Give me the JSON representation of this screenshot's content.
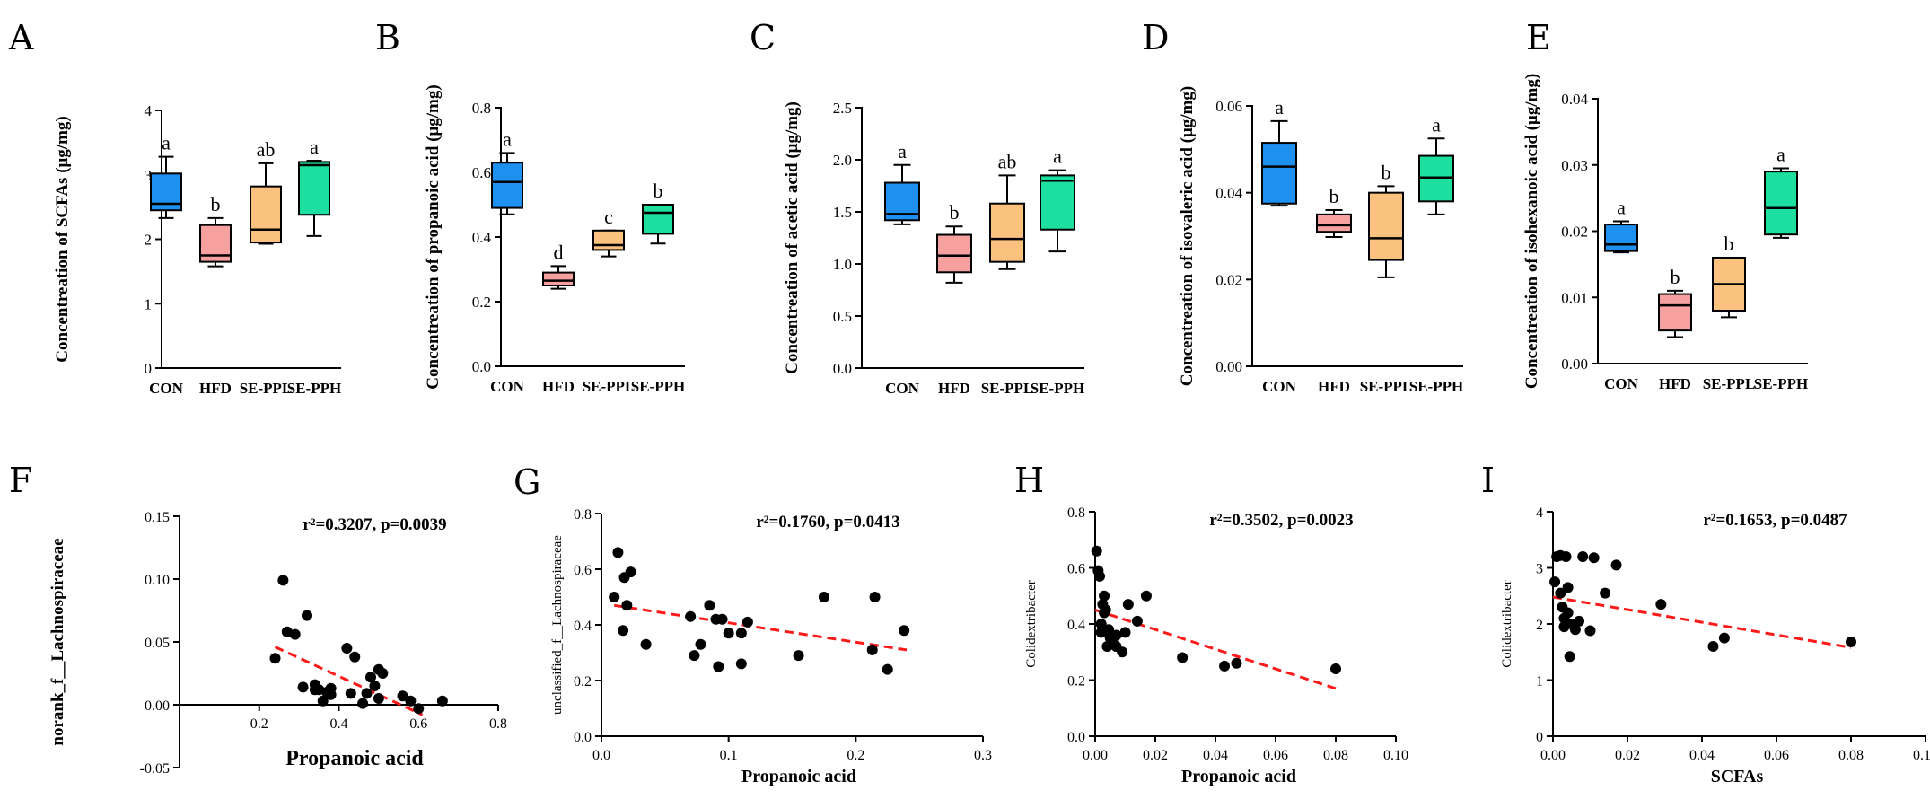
{
  "colors": {
    "CON": "#1e90f0",
    "HFD": "#f6a0a0",
    "SE-PPL": "#fbc27f",
    "SE-PPH": "#1de0a0",
    "trend": "#ff1a1a",
    "point": "#000000"
  },
  "chart_data": [
    {
      "panel": "A",
      "type": "box",
      "ylabel": "Concentreation of SCFAs (μg/mg)",
      "ylim": [
        0,
        4
      ],
      "yticks": [
        0,
        1,
        2,
        3,
        4
      ],
      "ytick_labels": [
        "0",
        "1",
        "2",
        "3",
        "4"
      ],
      "categories": [
        "CON",
        "HFD",
        "SE-PPL",
        "SE-PPH"
      ],
      "boxes": [
        {
          "group": "CON",
          "min": 2.33,
          "q1": 2.45,
          "median": 2.55,
          "q3": 3.02,
          "max": 3.28,
          "sig": "a"
        },
        {
          "group": "HFD",
          "min": 1.58,
          "q1": 1.65,
          "median": 1.75,
          "q3": 2.22,
          "max": 2.33,
          "sig": "b"
        },
        {
          "group": "SE-PPL",
          "min": 1.93,
          "q1": 1.95,
          "median": 2.15,
          "q3": 2.82,
          "max": 3.18,
          "sig": "ab"
        },
        {
          "group": "SE-PPH",
          "min": 2.05,
          "q1": 2.38,
          "median": 3.15,
          "q3": 3.2,
          "max": 3.22,
          "sig": "a"
        }
      ]
    },
    {
      "panel": "B",
      "type": "box",
      "ylabel": "Concentreation of propanoic acid (μg/mg)",
      "ylim": [
        0,
        0.8
      ],
      "yticks": [
        0,
        0.2,
        0.4,
        0.6,
        0.8
      ],
      "ytick_labels": [
        "0.0",
        "0.2",
        "0.4",
        "0.6",
        "0.8"
      ],
      "categories": [
        "CON",
        "HFD",
        "SE-PPL",
        "SE-PPH"
      ],
      "boxes": [
        {
          "group": "CON",
          "min": 0.47,
          "q1": 0.49,
          "median": 0.57,
          "q3": 0.63,
          "max": 0.66,
          "sig": "a"
        },
        {
          "group": "HFD",
          "min": 0.24,
          "q1": 0.25,
          "median": 0.265,
          "q3": 0.29,
          "max": 0.31,
          "sig": "d"
        },
        {
          "group": "SE-PPL",
          "min": 0.34,
          "q1": 0.36,
          "median": 0.375,
          "q3": 0.42,
          "max": 0.42,
          "sig": "c"
        },
        {
          "group": "SE-PPH",
          "min": 0.38,
          "q1": 0.41,
          "median": 0.475,
          "q3": 0.5,
          "max": 0.5,
          "sig": "b"
        }
      ]
    },
    {
      "panel": "C",
      "type": "box",
      "ylabel": "Concentreation of acetic acid (μg/mg)",
      "ylim": [
        0,
        2.5
      ],
      "yticks": [
        0,
        0.5,
        1,
        1.5,
        2,
        2.5
      ],
      "ytick_labels": [
        "0.0",
        "0.5",
        "1.0",
        "1.5",
        "2.0",
        "2.5"
      ],
      "categories": [
        "CON",
        "HFD",
        "SE-PPL",
        "SE-PPH"
      ],
      "boxes": [
        {
          "group": "CON",
          "min": 1.38,
          "q1": 1.42,
          "median": 1.48,
          "q3": 1.78,
          "max": 1.95,
          "sig": "a"
        },
        {
          "group": "HFD",
          "min": 0.82,
          "q1": 0.92,
          "median": 1.08,
          "q3": 1.28,
          "max": 1.36,
          "sig": "b"
        },
        {
          "group": "SE-PPL",
          "min": 0.95,
          "q1": 1.02,
          "median": 1.24,
          "q3": 1.58,
          "max": 1.85,
          "sig": "ab"
        },
        {
          "group": "SE-PPH",
          "min": 1.12,
          "q1": 1.33,
          "median": 1.8,
          "q3": 1.85,
          "max": 1.9,
          "sig": "a"
        }
      ]
    },
    {
      "panel": "D",
      "type": "box",
      "ylabel": "Concentreation of isovaleric acid (μg/mg)",
      "ylim": [
        0,
        0.06
      ],
      "yticks": [
        0,
        0.02,
        0.04,
        0.06
      ],
      "ytick_labels": [
        "0.00",
        "0.02",
        "0.04",
        "0.06"
      ],
      "categories": [
        "CON",
        "HFD",
        "SE-PPL",
        "SE-PPH"
      ],
      "boxes": [
        {
          "group": "CON",
          "min": 0.037,
          "q1": 0.0375,
          "median": 0.046,
          "q3": 0.0515,
          "max": 0.0565,
          "sig": "a"
        },
        {
          "group": "HFD",
          "min": 0.0298,
          "q1": 0.031,
          "median": 0.0325,
          "q3": 0.035,
          "max": 0.036,
          "sig": "b"
        },
        {
          "group": "SE-PPL",
          "min": 0.0205,
          "q1": 0.0245,
          "median": 0.0295,
          "q3": 0.04,
          "max": 0.0415,
          "sig": "b"
        },
        {
          "group": "SE-PPH",
          "min": 0.035,
          "q1": 0.038,
          "median": 0.0435,
          "q3": 0.0485,
          "max": 0.0525,
          "sig": "a"
        }
      ]
    },
    {
      "panel": "E",
      "type": "box",
      "ylabel": "Concentreation of isohexanoic acid (μg/mg)",
      "ylim": [
        0,
        0.04
      ],
      "yticks": [
        0,
        0.01,
        0.02,
        0.03,
        0.04
      ],
      "ytick_labels": [
        "0.00",
        "0.01",
        "0.02",
        "0.03",
        "0.04"
      ],
      "categories": [
        "CON",
        "HFD",
        "SE-PPL",
        "SE-PPH"
      ],
      "boxes": [
        {
          "group": "CON",
          "min": 0.0168,
          "q1": 0.017,
          "median": 0.018,
          "q3": 0.021,
          "max": 0.0215,
          "sig": "a"
        },
        {
          "group": "HFD",
          "min": 0.004,
          "q1": 0.005,
          "median": 0.0088,
          "q3": 0.0105,
          "max": 0.011,
          "sig": "b"
        },
        {
          "group": "SE-PPL",
          "min": 0.007,
          "q1": 0.008,
          "median": 0.012,
          "q3": 0.016,
          "max": 0.016,
          "sig": "b"
        },
        {
          "group": "SE-PPH",
          "min": 0.019,
          "q1": 0.0195,
          "median": 0.0235,
          "q3": 0.029,
          "max": 0.0295,
          "sig": "a"
        }
      ]
    },
    {
      "panel": "F",
      "type": "scatter",
      "xlabel": "Propanoic acid",
      "ylabel": "norank_f__Lachnospiraceae",
      "stat": "r²=0.3207, p=0.0039",
      "xlim": [
        0,
        0.8
      ],
      "ylim": [
        -0.05,
        0.15
      ],
      "xticks": [
        0.2,
        0.4,
        0.6,
        0.8
      ],
      "xtick_labels": [
        "0.2",
        "0.4",
        "0.6",
        "0.8"
      ],
      "yticks": [
        -0.05,
        0,
        0.05,
        0.1,
        0.15
      ],
      "ytick_labels": [
        "-0.05",
        "0.00",
        "0.05",
        "0.10",
        "0.15"
      ],
      "points": [
        [
          0.24,
          0.037
        ],
        [
          0.26,
          0.099
        ],
        [
          0.27,
          0.058
        ],
        [
          0.29,
          0.056
        ],
        [
          0.31,
          0.014
        ],
        [
          0.32,
          0.071
        ],
        [
          0.34,
          0.016
        ],
        [
          0.34,
          0.012
        ],
        [
          0.35,
          0.012
        ],
        [
          0.36,
          0.003
        ],
        [
          0.37,
          0.01
        ],
        [
          0.38,
          0.013
        ],
        [
          0.38,
          0.008
        ],
        [
          0.42,
          0.045
        ],
        [
          0.43,
          0.009
        ],
        [
          0.44,
          0.038
        ],
        [
          0.46,
          0.001
        ],
        [
          0.47,
          0.009
        ],
        [
          0.48,
          0.022
        ],
        [
          0.49,
          0.015
        ],
        [
          0.5,
          0.028
        ],
        [
          0.51,
          0.025
        ],
        [
          0.5,
          0.005
        ],
        [
          0.56,
          0.007
        ],
        [
          0.58,
          0.003
        ],
        [
          0.6,
          -0.003
        ],
        [
          0.66,
          0.003
        ]
      ],
      "trend": {
        "x0": 0.24,
        "y0": 0.046,
        "x1": 0.61,
        "y1": -0.008
      }
    },
    {
      "panel": "G",
      "type": "scatter",
      "xlabel": "Propanoic acid",
      "ylabel": "unclassified_f__Lachnospiraceae",
      "stat": "r²=0.1760, p=0.0413",
      "xlim": [
        0,
        0.3
      ],
      "ylim": [
        0,
        0.8
      ],
      "xticks": [
        0,
        0.1,
        0.2,
        0.3
      ],
      "xtick_labels": [
        "0.0",
        "0.1",
        "0.2",
        "0.3"
      ],
      "yticks": [
        0,
        0.2,
        0.4,
        0.6,
        0.8
      ],
      "ytick_labels": [
        "0.0",
        "0.2",
        "0.4",
        "0.6",
        "0.8"
      ],
      "points": [
        [
          0.01,
          0.5
        ],
        [
          0.013,
          0.66
        ],
        [
          0.017,
          0.38
        ],
        [
          0.018,
          0.57
        ],
        [
          0.02,
          0.47
        ],
        [
          0.023,
          0.59
        ],
        [
          0.035,
          0.33
        ],
        [
          0.07,
          0.43
        ],
        [
          0.073,
          0.29
        ],
        [
          0.078,
          0.33
        ],
        [
          0.085,
          0.47
        ],
        [
          0.09,
          0.42
        ],
        [
          0.092,
          0.25
        ],
        [
          0.095,
          0.42
        ],
        [
          0.1,
          0.37
        ],
        [
          0.11,
          0.37
        ],
        [
          0.11,
          0.26
        ],
        [
          0.115,
          0.41
        ],
        [
          0.155,
          0.29
        ],
        [
          0.175,
          0.5
        ],
        [
          0.213,
          0.31
        ],
        [
          0.215,
          0.5
        ],
        [
          0.225,
          0.24
        ],
        [
          0.238,
          0.38
        ]
      ],
      "trend": {
        "x0": 0.01,
        "y0": 0.47,
        "x1": 0.24,
        "y1": 0.31
      }
    },
    {
      "panel": "H",
      "type": "scatter",
      "xlabel": "Propanoic acid",
      "ylabel": "Colidextribacter",
      "stat": "r²=0.3502, p=0.0023",
      "xlim": [
        0,
        0.1
      ],
      "ylim": [
        0,
        0.8
      ],
      "xticks": [
        0,
        0.02,
        0.04,
        0.06,
        0.08,
        0.1
      ],
      "xtick_labels": [
        "0.00",
        "0.02",
        "0.04",
        "0.06",
        "0.08",
        "0.10"
      ],
      "yticks": [
        0,
        0.2,
        0.4,
        0.6,
        0.8
      ],
      "ytick_labels": [
        "0.0",
        "0.2",
        "0.4",
        "0.6",
        "0.8"
      ],
      "points": [
        [
          0.0005,
          0.66
        ],
        [
          0.001,
          0.59
        ],
        [
          0.0015,
          0.57
        ],
        [
          0.002,
          0.4
        ],
        [
          0.002,
          0.37
        ],
        [
          0.0025,
          0.47
        ],
        [
          0.003,
          0.44
        ],
        [
          0.003,
          0.5
        ],
        [
          0.0035,
          0.45
        ],
        [
          0.004,
          0.37
        ],
        [
          0.004,
          0.32
        ],
        [
          0.0045,
          0.38
        ],
        [
          0.005,
          0.35
        ],
        [
          0.006,
          0.33
        ],
        [
          0.007,
          0.36
        ],
        [
          0.007,
          0.32
        ],
        [
          0.009,
          0.3
        ],
        [
          0.01,
          0.37
        ],
        [
          0.011,
          0.47
        ],
        [
          0.014,
          0.41
        ],
        [
          0.017,
          0.5
        ],
        [
          0.029,
          0.28
        ],
        [
          0.043,
          0.25
        ],
        [
          0.047,
          0.26
        ],
        [
          0.08,
          0.24
        ]
      ],
      "trend": {
        "x0": 0,
        "y0": 0.45,
        "x1": 0.08,
        "y1": 0.17
      }
    },
    {
      "panel": "I",
      "type": "scatter",
      "xlabel": "SCFAs",
      "ylabel": "Colidextribacter",
      "stat": "r²=0.1653, p=0.0487",
      "xlim": [
        0,
        0.1
      ],
      "ylim": [
        0,
        4
      ],
      "xticks": [
        0,
        0.02,
        0.04,
        0.06,
        0.08,
        0.1
      ],
      "xtick_labels": [
        "0.00",
        "0.02",
        "0.04",
        "0.06",
        "0.08",
        "0.10"
      ],
      "yticks": [
        0,
        1,
        2,
        3,
        4
      ],
      "ytick_labels": [
        "0",
        "1",
        "2",
        "3",
        "4"
      ],
      "points": [
        [
          0.0005,
          2.75
        ],
        [
          0.001,
          3.2
        ],
        [
          0.002,
          3.22
        ],
        [
          0.002,
          2.55
        ],
        [
          0.0025,
          2.3
        ],
        [
          0.003,
          2.1
        ],
        [
          0.003,
          1.95
        ],
        [
          0.0035,
          3.2
        ],
        [
          0.004,
          2.65
        ],
        [
          0.004,
          2.2
        ],
        [
          0.0045,
          1.42
        ],
        [
          0.005,
          2.0
        ],
        [
          0.006,
          1.9
        ],
        [
          0.007,
          2.05
        ],
        [
          0.008,
          3.2
        ],
        [
          0.01,
          1.88
        ],
        [
          0.011,
          3.18
        ],
        [
          0.014,
          2.55
        ],
        [
          0.017,
          3.05
        ],
        [
          0.029,
          2.35
        ],
        [
          0.043,
          1.6
        ],
        [
          0.046,
          1.75
        ],
        [
          0.08,
          1.68
        ]
      ],
      "trend": {
        "x0": 0,
        "y0": 2.48,
        "x1": 0.08,
        "y1": 1.58
      }
    }
  ]
}
